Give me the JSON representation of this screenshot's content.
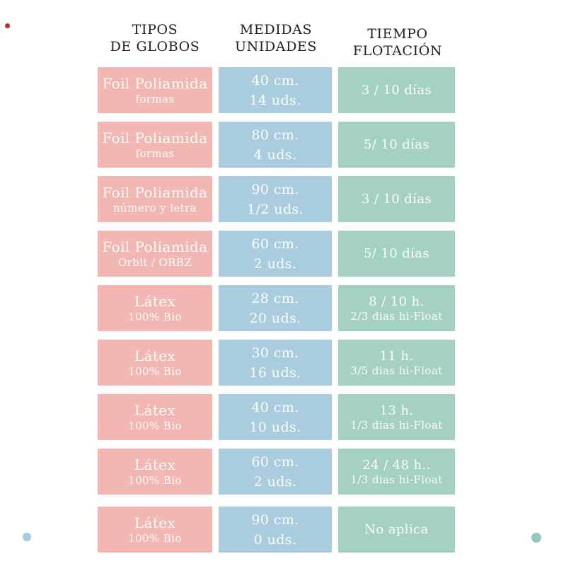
{
  "header": {
    "col1": {
      "line1": "TIPOS",
      "line2": "DE GLOBOS"
    },
    "col2": {
      "line1": "MEDIDAS",
      "line2": "UNIDADES"
    },
    "col3": {
      "line1": "TIEMPO",
      "line2": "FLOTACIÓN"
    }
  },
  "rows": [
    {
      "tipo": [
        "Foil Poliamida",
        "formas"
      ],
      "medida": [
        "40 cm.",
        "14 uds."
      ],
      "tiempo": [
        "3 / 10 días",
        ""
      ]
    },
    {
      "tipo": [
        "Foil Poliamida",
        "formas"
      ],
      "medida": [
        "80 cm.",
        "4 uds."
      ],
      "tiempo": [
        "5/ 10 días",
        ""
      ]
    },
    {
      "tipo": [
        "Foil Poliamida",
        "número y letra"
      ],
      "medida": [
        "90 cm.",
        "1/2 uds."
      ],
      "tiempo": [
        "3 / 10 días",
        ""
      ]
    },
    {
      "tipo": [
        "Foil Poliamida",
        "Orbit / ORBZ"
      ],
      "medida": [
        "60 cm.",
        "2 uds."
      ],
      "tiempo": [
        "5/ 10 días",
        ""
      ]
    },
    {
      "tipo": [
        "Látex",
        "100% Bio"
      ],
      "medida": [
        "28 cm.",
        "20 uds."
      ],
      "tiempo": [
        "8 / 10 h.",
        "2/3 dias hi-Float"
      ]
    },
    {
      "tipo": [
        "Látex",
        "100% Bio"
      ],
      "medida": [
        "30 cm.",
        "16 uds."
      ],
      "tiempo": [
        "11 h.",
        "3/5 dias hi-Float"
      ]
    },
    {
      "tipo": [
        "Látex",
        "100% Bio"
      ],
      "medida": [
        "40 cm.",
        "10 uds."
      ],
      "tiempo": [
        "13 h.",
        "1/3 dias hi-Float"
      ]
    },
    {
      "tipo": [
        "Látex",
        "100% Bio"
      ],
      "medida": [
        "60 cm.",
        "2 uds."
      ],
      "tiempo": [
        "24 / 48 h..",
        "1/3 dias hi-Float"
      ]
    },
    {
      "tipo": [
        "Látex",
        "100% Bio"
      ],
      "medida": [
        "90 cm.",
        "0 uds."
      ],
      "tiempo": [
        "No aplica",
        ""
      ]
    }
  ],
  "colors": {
    "tipo": "#f2b7b2",
    "medida": "#a9cdde",
    "tiempo": "#a4d1c0",
    "cell_text": "#fdfcfa",
    "header_text": "#1f1f1f",
    "dot_red": "#c5302c",
    "dot_blue": "#a6cade",
    "dot_teal": "#93c7bb"
  },
  "chart_data": {
    "type": "table",
    "columns": [
      "TIPOS DE GLOBOS",
      "MEDIDAS UNIDADES",
      "TIEMPO FLOTACIÓN"
    ],
    "rows": [
      [
        "Foil Poliamida formas",
        "40 cm. 14 uds.",
        "3 / 10 días"
      ],
      [
        "Foil Poliamida formas",
        "80 cm. 4 uds.",
        "5/ 10 días"
      ],
      [
        "Foil Poliamida número y letra",
        "90 cm. 1/2 uds.",
        "3 / 10 días"
      ],
      [
        "Foil Poliamida Orbit / ORBZ",
        "60 cm. 2 uds.",
        "5/ 10 días"
      ],
      [
        "Látex 100% Bio",
        "28 cm. 20 uds.",
        "8 / 10 h. 2/3 dias hi-Float"
      ],
      [
        "Látex 100% Bio",
        "30 cm. 16 uds.",
        "11 h. 3/5 dias hi-Float"
      ],
      [
        "Látex 100% Bio",
        "40 cm. 10 uds.",
        "13 h. 1/3 dias hi-Float"
      ],
      [
        "Látex 100% Bio",
        "60 cm. 2 uds.",
        "24 / 48 h.. 1/3 dias hi-Float"
      ],
      [
        "Látex 100% Bio",
        "90 cm. 0 uds.",
        "No aplica"
      ]
    ]
  }
}
